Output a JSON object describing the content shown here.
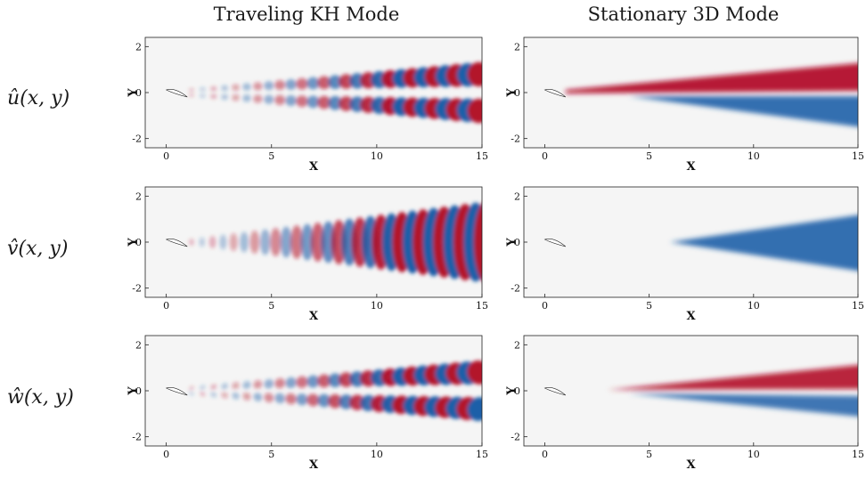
{
  "columns": {
    "left": "Traveling KH Mode",
    "right": "Stationary 3D Mode"
  },
  "rows": [
    {
      "label": "û(x, y)"
    },
    {
      "label": "v̂(x, y)"
    },
    {
      "label": "ŵ(x, y)"
    }
  ],
  "axes": {
    "xlabel": "X",
    "ylabel": "Y",
    "xticks": [
      "0",
      "5",
      "10",
      "15"
    ],
    "yticks": [
      "2",
      "0",
      "-2"
    ],
    "xlim": [
      -1,
      15
    ],
    "ylim": [
      -2.4,
      2.4
    ]
  },
  "colors": {
    "positive": "#b3122a",
    "negative": "#1f5fa8",
    "background": "#f5f5f5"
  },
  "panels": [
    {
      "id": "u-kh",
      "row": 0,
      "col": "left",
      "field": "u",
      "mode": "traveling"
    },
    {
      "id": "u-3d",
      "row": 0,
      "col": "right",
      "field": "u",
      "mode": "stationary"
    },
    {
      "id": "v-kh",
      "row": 1,
      "col": "left",
      "field": "v",
      "mode": "traveling"
    },
    {
      "id": "v-3d",
      "row": 1,
      "col": "right",
      "field": "v",
      "mode": "stationary"
    },
    {
      "id": "w-kh",
      "row": 2,
      "col": "left",
      "field": "w",
      "mode": "traveling"
    },
    {
      "id": "w-3d",
      "row": 2,
      "col": "right",
      "field": "w",
      "mode": "stationary"
    }
  ]
}
